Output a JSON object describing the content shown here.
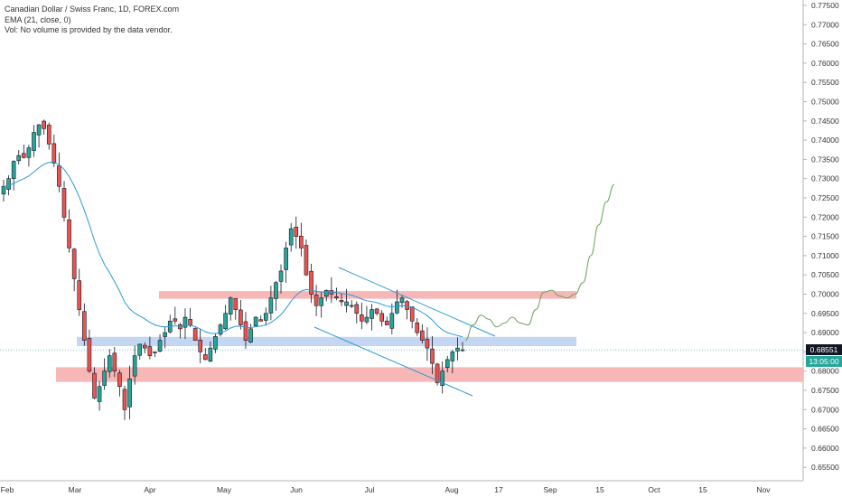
{
  "header": {
    "symbol_line": "Canadian Dollar / Swiss Franc, 1D, FOREX.com",
    "ema_line": "EMA (21, close, 0)",
    "vol_line": "Vol: No volume is provided by the data vendor."
  },
  "price_labels": {
    "last_price": "0.68551",
    "countdown": "13:05:00"
  },
  "colors": {
    "up": "#26a69a",
    "down": "#ef5350",
    "candle_body": "#131722",
    "ema": "#2a9ad6",
    "projection": "#6ba35a",
    "channel": "#2a9ad6",
    "resistance_zone": "#f7b7b7",
    "support_zone": "#f7b7b7",
    "pivot_zone": "#c4d6f2",
    "last_price_bg": "#131722",
    "countdown_bg": "#26a69a",
    "axis_text": "#333333",
    "grid": "#e0e3eb"
  },
  "chart_data": {
    "type": "candlestick",
    "title": "Canadian Dollar / Swiss Franc, 1D, FOREX.com",
    "y_axis": {
      "ticks": [
        "0.77500",
        "0.77000",
        "0.76500",
        "0.76000",
        "0.75500",
        "0.75000",
        "0.74500",
        "0.74000",
        "0.73500",
        "0.73000",
        "0.72500",
        "0.72000",
        "0.71500",
        "0.71000",
        "0.70500",
        "0.70000",
        "0.69500",
        "0.69000",
        "0.68500",
        "0.68000",
        "0.67500",
        "0.67000",
        "0.66500",
        "0.66000",
        "0.65500"
      ],
      "ylim": [
        0.6535,
        0.7775
      ]
    },
    "x_axis": {
      "ticks": [
        "Feb",
        "Mar",
        "Apr",
        "May",
        "Jun",
        "Jul",
        "Aug",
        "17",
        "Sep",
        "15",
        "Oct",
        "15",
        "Nov"
      ]
    },
    "indicators": [
      {
        "name": "EMA (21, close, 0)"
      }
    ],
    "zones": [
      {
        "name": "resistance",
        "from": 0.6988,
        "to": 0.7008
      },
      {
        "name": "pivot",
        "from": 0.6865,
        "to": 0.6889
      },
      {
        "name": "support",
        "from": 0.6772,
        "to": 0.681
      }
    ],
    "channel": {
      "upper": [
        [
          "Jun",
          "0.7075"
        ],
        [
          "Aug",
          "0.6880"
        ]
      ],
      "lower": [
        [
          "Jun",
          "0.6915"
        ],
        [
          "Aug",
          "0.6740"
        ]
      ]
    },
    "last_price": 0.68551,
    "price_path_close": [
      0.728,
      0.73,
      0.7345,
      0.736,
      0.7355,
      0.738,
      0.742,
      0.744,
      0.743,
      0.739,
      0.734,
      0.728,
      0.72,
      0.712,
      0.704,
      0.696,
      0.688,
      0.68,
      0.673,
      0.676,
      0.68,
      0.684,
      0.68,
      0.676,
      0.67,
      0.678,
      0.684,
      0.687,
      0.686,
      0.684,
      0.685,
      0.688,
      0.69,
      0.693,
      0.693,
      0.691,
      0.694,
      0.692,
      0.688,
      0.685,
      0.683,
      0.686,
      0.689,
      0.692,
      0.695,
      0.699,
      0.696,
      0.692,
      0.688,
      0.691,
      0.694,
      0.693,
      0.695,
      0.699,
      0.703,
      0.706,
      0.712,
      0.717,
      0.715,
      0.712,
      0.705,
      0.7,
      0.697,
      0.699,
      0.701,
      0.7,
      0.699,
      0.698,
      0.698,
      0.697,
      0.695,
      0.693,
      0.694,
      0.696,
      0.695,
      0.693,
      0.692,
      0.695,
      0.698,
      0.699,
      0.696,
      0.693,
      0.69,
      0.688,
      0.686,
      0.682,
      0.677,
      0.68,
      0.683,
      0.685,
      0.686,
      0.6855
    ],
    "projection_path": [
      0.688,
      0.692,
      0.6945,
      0.6935,
      0.6915,
      0.6925,
      0.694,
      0.6925,
      0.692,
      0.696,
      0.7005,
      0.701,
      0.6995,
      0.699,
      0.7,
      0.703,
      0.71,
      0.718,
      0.724,
      0.7285
    ]
  }
}
